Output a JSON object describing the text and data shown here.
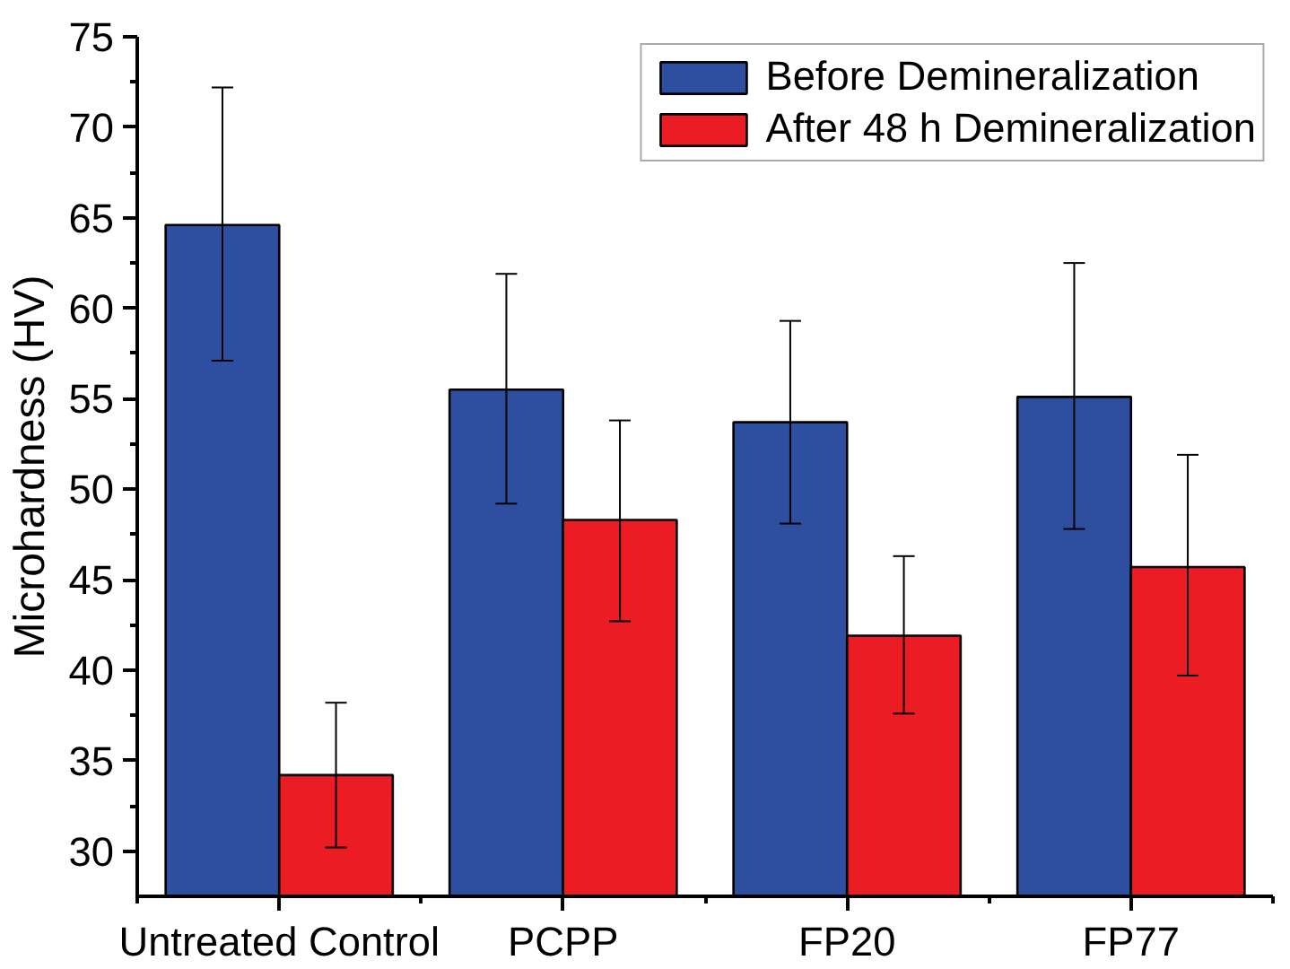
{
  "chart_data": {
    "type": "bar",
    "ylabel": "Microhardness (HV)",
    "categories": [
      "Untreated Control",
      "PCPP",
      "FP20",
      "FP77"
    ],
    "series": [
      {
        "name": "Before Demineralization",
        "color": "#2e4fa0",
        "values": [
          64.6,
          55.5,
          53.7,
          55.1
        ],
        "errors": [
          [
            57.1,
            72.2
          ],
          [
            49.2,
            61.9
          ],
          [
            48.1,
            59.3
          ],
          [
            47.8,
            62.5
          ]
        ]
      },
      {
        "name": "After 48 h Demineralization",
        "color": "#ec1c24",
        "values": [
          34.2,
          48.3,
          41.9,
          45.7
        ],
        "errors": [
          [
            30.2,
            38.2
          ],
          [
            42.7,
            53.8
          ],
          [
            37.6,
            46.3
          ],
          [
            39.7,
            51.9
          ]
        ]
      }
    ],
    "ylim": [
      27.5,
      75
    ],
    "yticks": [
      30,
      35,
      40,
      45,
      50,
      55,
      60,
      65,
      70,
      75
    ],
    "grid": false,
    "legend": "top right"
  }
}
